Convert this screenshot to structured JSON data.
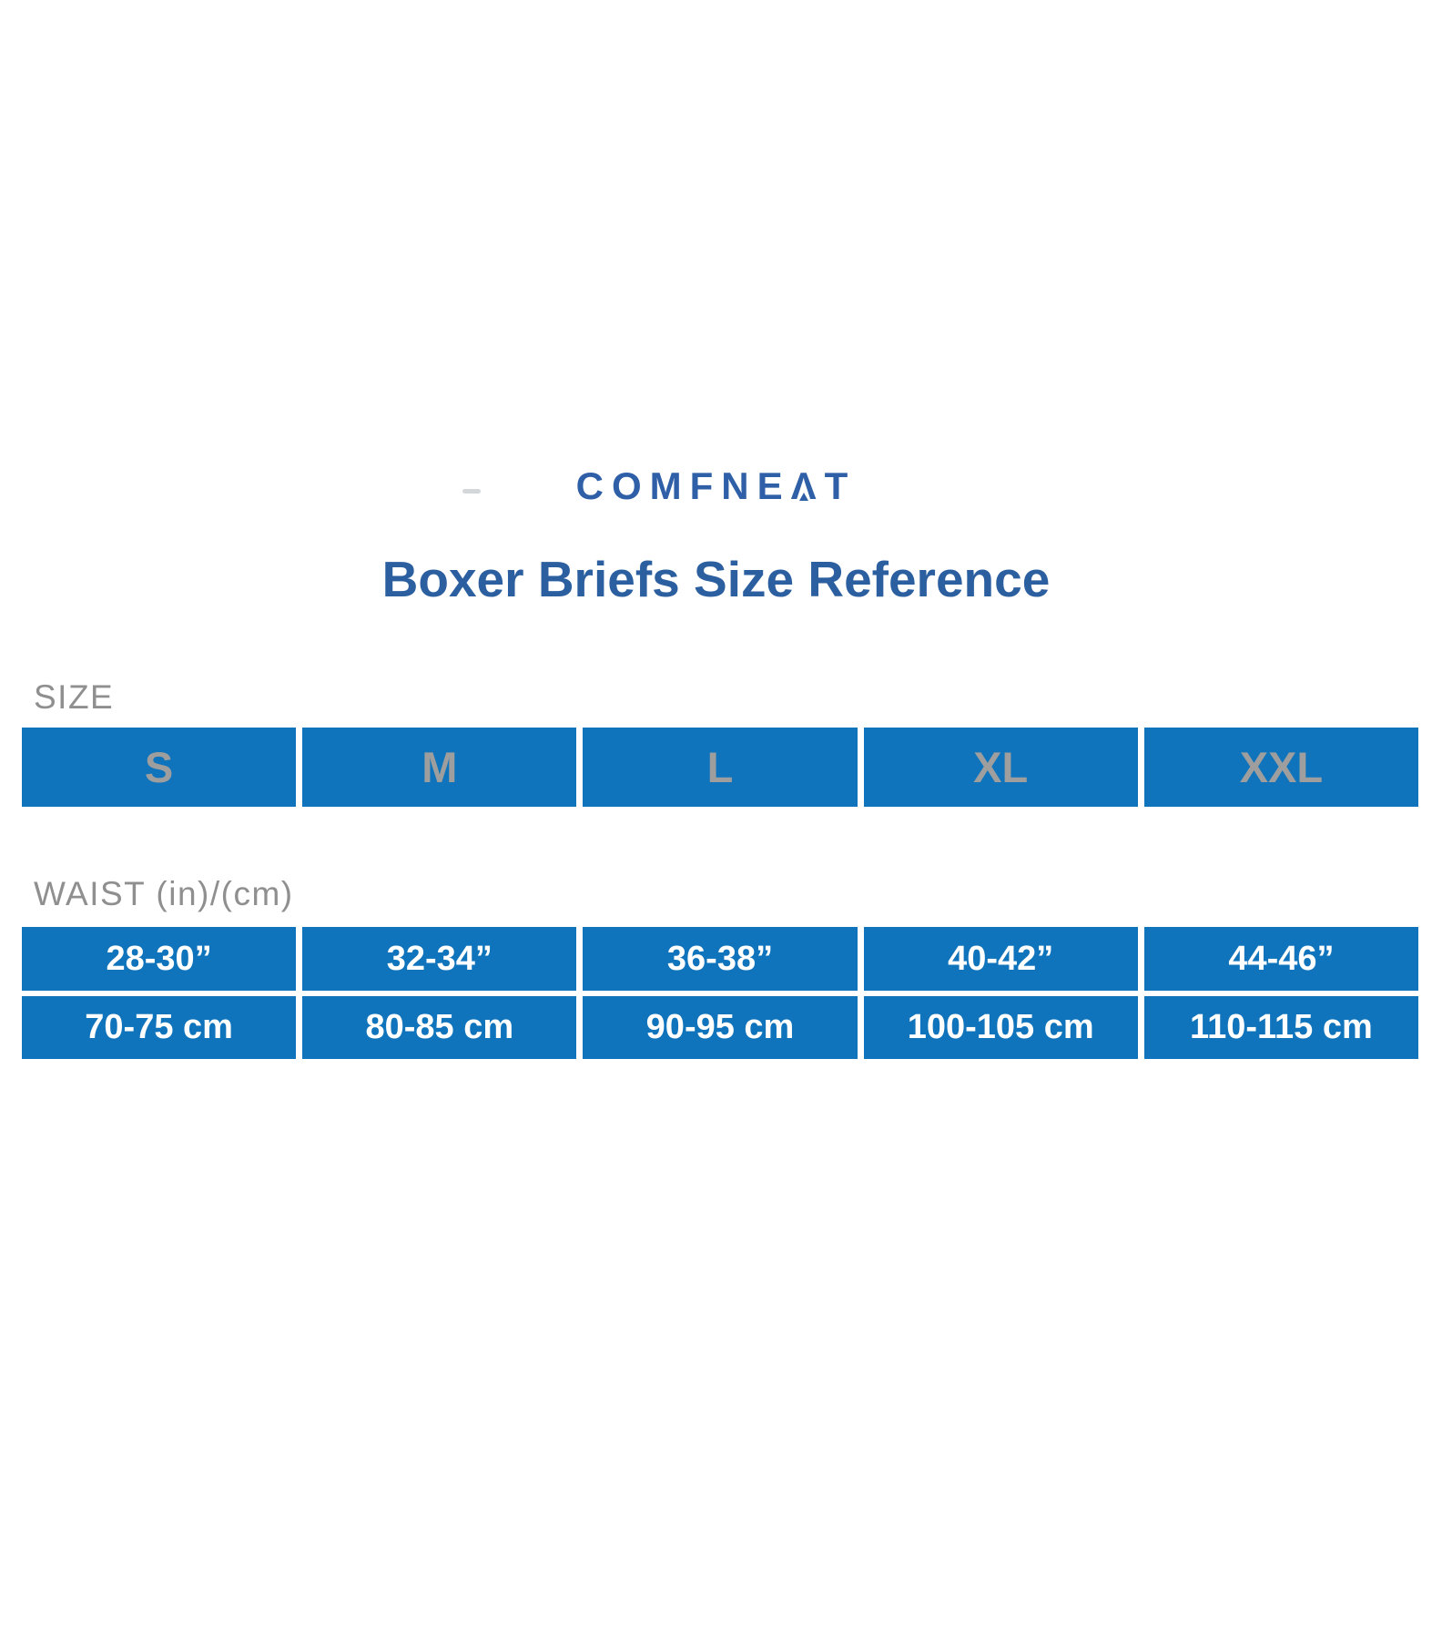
{
  "brand": {
    "logo_text": "COMFNEAT",
    "display": {
      "pre": "COMFNE",
      "a": "Λ",
      "post": "T"
    }
  },
  "title": "Boxer Briefs Size Reference",
  "size_section": {
    "label": "SIZE",
    "sizes": [
      "S",
      "M",
      "L",
      "XL",
      "XXL"
    ]
  },
  "waist_section": {
    "label": "WAIST (in)/(cm)",
    "inches": [
      "28-30”",
      "32-34”",
      "36-38”",
      "40-42”",
      "44-46”"
    ],
    "cm": [
      "70-75 cm",
      "80-85 cm",
      "90-95 cm",
      "100-105 cm",
      "110-115 cm"
    ]
  },
  "chart_data": {
    "type": "table",
    "title": "Boxer Briefs Size Reference",
    "columns": [
      "S",
      "M",
      "L",
      "XL",
      "XXL"
    ],
    "rows": [
      {
        "label": "WAIST (in)",
        "values": [
          "28-30”",
          "32-34”",
          "36-38”",
          "40-42”",
          "44-46”"
        ]
      },
      {
        "label": "WAIST (cm)",
        "values": [
          "70-75 cm",
          "80-85 cm",
          "90-95 cm",
          "100-105 cm",
          "110-115 cm"
        ]
      }
    ],
    "layout": {
      "grid": false,
      "legend": "none"
    }
  },
  "colors": {
    "cell_blue": "#0f74bb",
    "title_blue": "#2c5fa0",
    "logo_blue": "#2e5fa7",
    "label_gray": "#8f8f8f",
    "size_letter_gray": "#9e9e9e",
    "cell_text_white": "#ffffff"
  }
}
